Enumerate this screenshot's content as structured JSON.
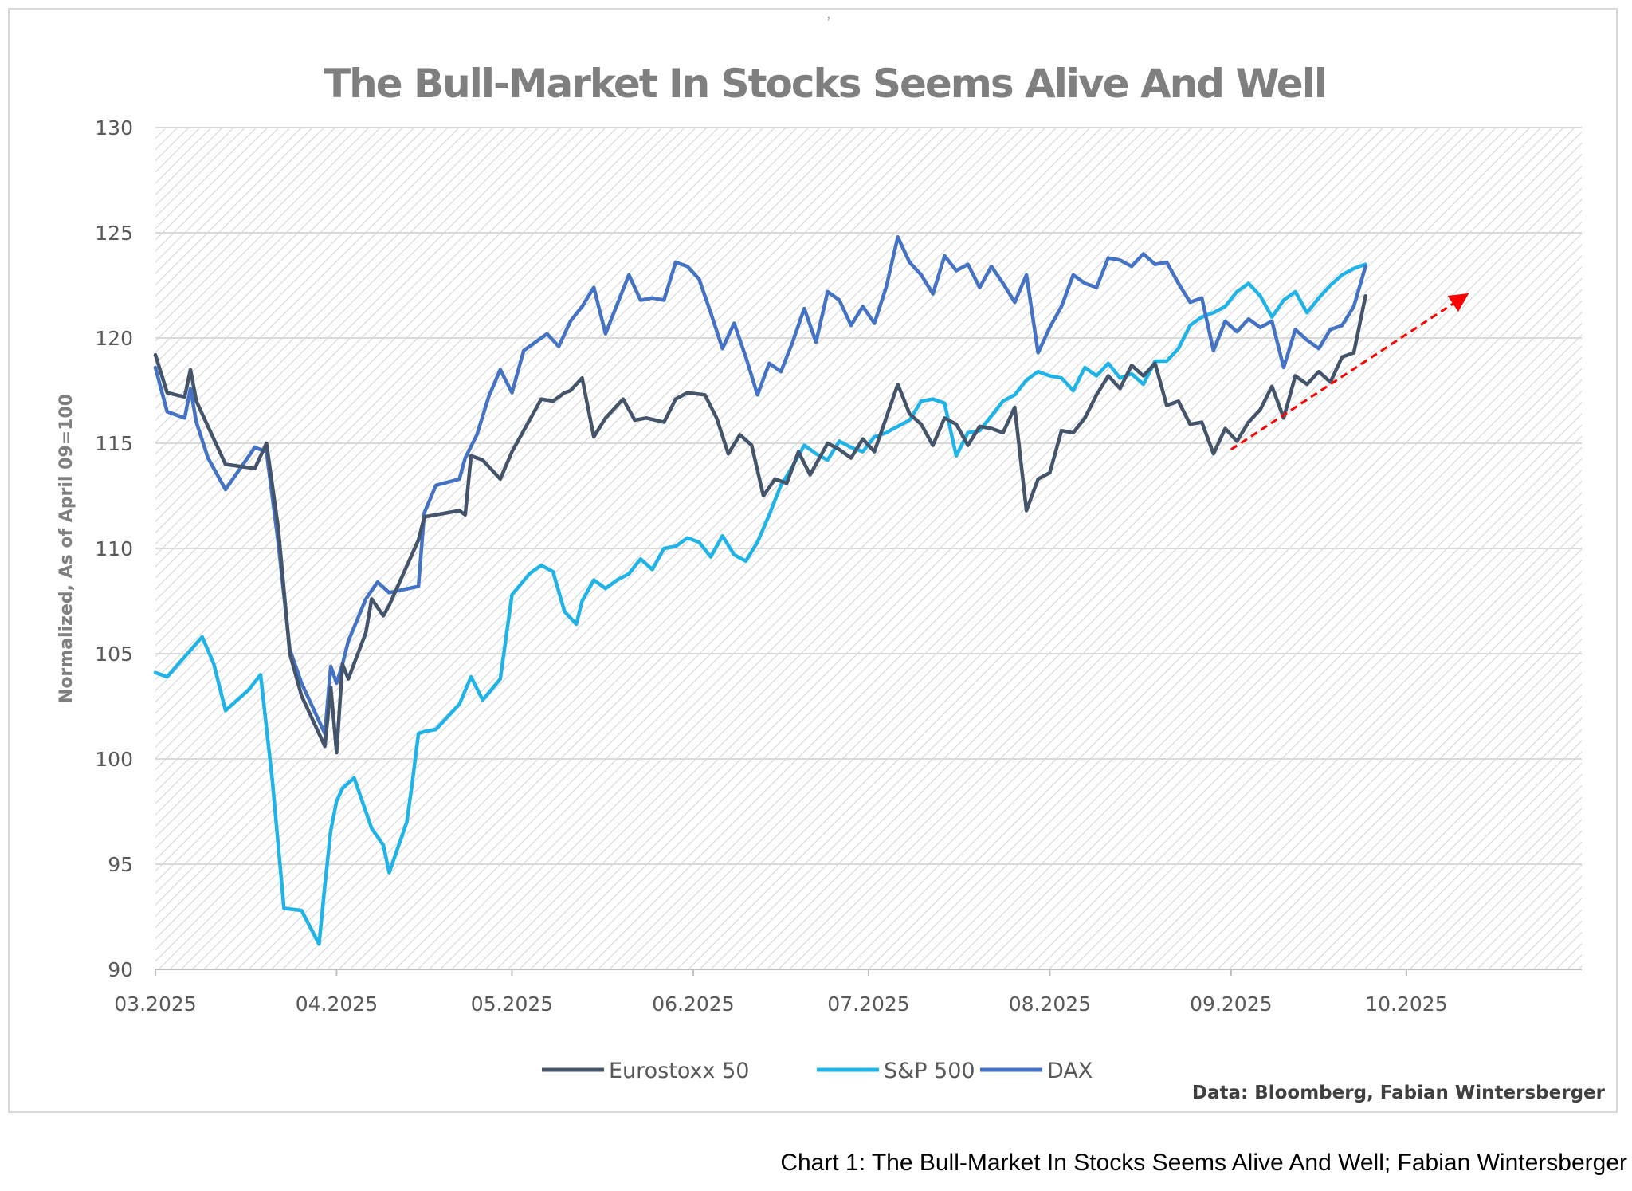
{
  "caption": "Chart 1: The Bull-Market In Stocks Seems Alive And Well; Fabian Wintersberger",
  "top_mark": ",",
  "colors": {
    "eurostoxx": "#44546a",
    "sp500": "#1fb3e8",
    "dax": "#4472c4",
    "arrow": "#ff0000",
    "grid": "#d9d9d9",
    "hatch": "#d6d6d6"
  },
  "chart_data": {
    "type": "line",
    "title": "The Bull-Market In Stocks Seems Alive And Well",
    "xlabel": "",
    "ylabel": "Normalized, As of April 09=100",
    "source": "Data: Bloomberg, Fabian Wintersberger",
    "ylim": [
      90,
      130
    ],
    "yticks": [
      90,
      95,
      100,
      105,
      110,
      115,
      120,
      125,
      130
    ],
    "xlim": [
      "2025-03-01",
      "2025-10-31"
    ],
    "xtick_labels": [
      "03.2025",
      "04.2025",
      "05.2025",
      "06.2025",
      "07.2025",
      "08.2025",
      "09.2025",
      "10.2025"
    ],
    "grid": true,
    "legend": "bottom",
    "annotation": "red dashed trend arrow pointing up-right, from about 114.7 in early September to about 122 in mid-October",
    "arrow": {
      "from": [
        "2025-09-01",
        114.7
      ],
      "to": [
        "2025-10-11",
        122.0
      ]
    },
    "series": [
      {
        "name": "Eurostoxx 50",
        "x": [
          "2025-03-01",
          "2025-03-03",
          "2025-03-06",
          "2025-03-07",
          "2025-03-08",
          "2025-03-10",
          "2025-03-13",
          "2025-03-18",
          "2025-03-20",
          "2025-03-22",
          "2025-03-24",
          "2025-03-26",
          "2025-03-30",
          "2025-03-31",
          "2025-04-01",
          "2025-04-02",
          "2025-04-03",
          "2025-04-06",
          "2025-04-07",
          "2025-04-09",
          "2025-04-10",
          "2025-04-15",
          "2025-04-16",
          "2025-04-22",
          "2025-04-23",
          "2025-04-24",
          "2025-04-26",
          "2025-04-29",
          "2025-05-01",
          "2025-05-03",
          "2025-05-06",
          "2025-05-08",
          "2025-05-10",
          "2025-05-11",
          "2025-05-13",
          "2025-05-15",
          "2025-05-17",
          "2025-05-20",
          "2025-05-22",
          "2025-05-24",
          "2025-05-27",
          "2025-05-29",
          "2025-05-31",
          "2025-06-03",
          "2025-06-05",
          "2025-06-07",
          "2025-06-09",
          "2025-06-11",
          "2025-06-13",
          "2025-06-15",
          "2025-06-17",
          "2025-06-19",
          "2025-06-21",
          "2025-06-24",
          "2025-06-26",
          "2025-06-28",
          "2025-06-30",
          "2025-07-02",
          "2025-07-04",
          "2025-07-06",
          "2025-07-08",
          "2025-07-10",
          "2025-07-12",
          "2025-07-14",
          "2025-07-16",
          "2025-07-18",
          "2025-07-20",
          "2025-07-22",
          "2025-07-24",
          "2025-07-26",
          "2025-07-28",
          "2025-07-30",
          "2025-08-01",
          "2025-08-03",
          "2025-08-05",
          "2025-08-07",
          "2025-08-09",
          "2025-08-11",
          "2025-08-13",
          "2025-08-15",
          "2025-08-17",
          "2025-08-19",
          "2025-08-21",
          "2025-08-23",
          "2025-08-25",
          "2025-08-27",
          "2025-08-29",
          "2025-08-31",
          "2025-09-02",
          "2025-09-04",
          "2025-09-06",
          "2025-09-08",
          "2025-09-10",
          "2025-09-12",
          "2025-09-14",
          "2025-09-16",
          "2025-09-18",
          "2025-09-20",
          "2025-09-22",
          "2025-09-24"
        ],
        "values": [
          119.2,
          117.4,
          117.2,
          118.5,
          117.0,
          115.8,
          114.0,
          113.8,
          115.0,
          111.0,
          105.0,
          103.0,
          100.6,
          103.4,
          100.3,
          104.5,
          103.8,
          106.0,
          107.6,
          106.8,
          107.3,
          110.4,
          111.5,
          111.8,
          111.6,
          114.4,
          114.2,
          113.3,
          114.6,
          115.6,
          117.1,
          117.0,
          117.4,
          117.5,
          118.1,
          115.3,
          116.2,
          117.1,
          116.1,
          116.2,
          116.0,
          117.1,
          117.4,
          117.3,
          116.2,
          114.5,
          115.4,
          114.9,
          112.5,
          113.3,
          113.1,
          114.6,
          113.5,
          115.0,
          114.7,
          114.3,
          115.2,
          114.6,
          116.2,
          117.8,
          116.4,
          115.9,
          114.9,
          116.2,
          115.9,
          114.9,
          115.8,
          115.7,
          115.5,
          116.7,
          111.8,
          113.3,
          113.6,
          115.6,
          115.5,
          116.2,
          117.3,
          118.2,
          117.6,
          118.7,
          118.2,
          118.8,
          116.8,
          117.0,
          115.9,
          116.0,
          114.5,
          115.7,
          115.1,
          116.0,
          116.6,
          117.7,
          116.2,
          118.2,
          117.8,
          118.4,
          117.9,
          119.1,
          119.3,
          122.0
        ]
      },
      {
        "name": "S&P 500",
        "x": [
          "2025-03-01",
          "2025-03-03",
          "2025-03-09",
          "2025-03-11",
          "2025-03-13",
          "2025-03-17",
          "2025-03-19",
          "2025-03-21",
          "2025-03-23",
          "2025-03-26",
          "2025-03-29",
          "2025-03-30",
          "2025-03-31",
          "2025-04-01",
          "2025-04-02",
          "2025-04-04",
          "2025-04-07",
          "2025-04-09",
          "2025-04-10",
          "2025-04-13",
          "2025-04-14",
          "2025-04-15",
          "2025-04-16",
          "2025-04-18",
          "2025-04-22",
          "2025-04-24",
          "2025-04-26",
          "2025-04-29",
          "2025-05-01",
          "2025-05-04",
          "2025-05-06",
          "2025-05-08",
          "2025-05-10",
          "2025-05-12",
          "2025-05-13",
          "2025-05-15",
          "2025-05-17",
          "2025-05-19",
          "2025-05-21",
          "2025-05-23",
          "2025-05-25",
          "2025-05-27",
          "2025-05-29",
          "2025-05-31",
          "2025-06-02",
          "2025-06-04",
          "2025-06-06",
          "2025-06-08",
          "2025-06-10",
          "2025-06-12",
          "2025-06-14",
          "2025-06-16",
          "2025-06-18",
          "2025-06-20",
          "2025-06-22",
          "2025-06-24",
          "2025-06-26",
          "2025-06-28",
          "2025-06-30",
          "2025-07-02",
          "2025-07-04",
          "2025-07-06",
          "2025-07-08",
          "2025-07-10",
          "2025-07-12",
          "2025-07-14",
          "2025-07-16",
          "2025-07-18",
          "2025-07-20",
          "2025-07-22",
          "2025-07-24",
          "2025-07-26",
          "2025-07-28",
          "2025-07-30",
          "2025-08-01",
          "2025-08-03",
          "2025-08-05",
          "2025-08-07",
          "2025-08-09",
          "2025-08-11",
          "2025-08-13",
          "2025-08-15",
          "2025-08-17",
          "2025-08-19",
          "2025-08-21",
          "2025-08-23",
          "2025-08-25",
          "2025-08-27",
          "2025-08-29",
          "2025-08-31",
          "2025-09-02",
          "2025-09-04",
          "2025-09-06",
          "2025-09-08",
          "2025-09-10",
          "2025-09-12",
          "2025-09-14",
          "2025-09-16",
          "2025-09-18",
          "2025-09-20",
          "2025-09-22",
          "2025-09-24"
        ],
        "values": [
          104.1,
          103.9,
          105.8,
          104.5,
          102.3,
          103.3,
          104.0,
          99.0,
          92.9,
          92.8,
          91.2,
          94.0,
          96.6,
          98.0,
          98.6,
          99.1,
          96.7,
          95.9,
          94.6,
          97.0,
          99.0,
          101.2,
          101.3,
          101.4,
          102.6,
          103.9,
          102.8,
          103.8,
          107.8,
          108.8,
          109.2,
          108.9,
          107.0,
          106.4,
          107.5,
          108.5,
          108.1,
          108.5,
          108.8,
          109.5,
          109.0,
          110.0,
          110.1,
          110.5,
          110.3,
          109.6,
          110.6,
          109.7,
          109.4,
          110.3,
          111.6,
          113.0,
          113.9,
          114.9,
          114.5,
          114.2,
          115.1,
          114.8,
          114.6,
          115.3,
          115.5,
          115.8,
          116.1,
          117.0,
          117.1,
          116.9,
          114.4,
          115.5,
          115.6,
          116.3,
          117.0,
          117.3,
          118.0,
          118.4,
          118.2,
          118.1,
          117.5,
          118.6,
          118.2,
          118.8,
          118.1,
          118.3,
          117.8,
          118.9,
          118.9,
          119.5,
          120.6,
          121.0,
          121.2,
          121.5,
          122.2,
          122.6,
          122.0,
          121.0,
          121.8,
          122.2,
          121.2,
          121.9,
          122.5,
          123.0,
          123.3,
          123.5
        ]
      },
      {
        "name": "DAX",
        "x": [
          "2025-03-01",
          "2025-03-03",
          "2025-03-06",
          "2025-03-07",
          "2025-03-08",
          "2025-03-10",
          "2025-03-13",
          "2025-03-18",
          "2025-03-20",
          "2025-03-22",
          "2025-03-24",
          "2025-03-26",
          "2025-03-30",
          "2025-03-31",
          "2025-04-01",
          "2025-04-02",
          "2025-04-03",
          "2025-04-06",
          "2025-04-08",
          "2025-04-10",
          "2025-04-15",
          "2025-04-16",
          "2025-04-18",
          "2025-04-22",
          "2025-04-23",
          "2025-04-25",
          "2025-04-27",
          "2025-04-29",
          "2025-05-01",
          "2025-05-03",
          "2025-05-05",
          "2025-05-07",
          "2025-05-09",
          "2025-05-11",
          "2025-05-13",
          "2025-05-15",
          "2025-05-17",
          "2025-05-19",
          "2025-05-21",
          "2025-05-23",
          "2025-05-25",
          "2025-05-27",
          "2025-05-29",
          "2025-05-31",
          "2025-06-02",
          "2025-06-04",
          "2025-06-06",
          "2025-06-08",
          "2025-06-10",
          "2025-06-12",
          "2025-06-14",
          "2025-06-16",
          "2025-06-18",
          "2025-06-20",
          "2025-06-22",
          "2025-06-24",
          "2025-06-26",
          "2025-06-28",
          "2025-06-30",
          "2025-07-02",
          "2025-07-04",
          "2025-07-06",
          "2025-07-08",
          "2025-07-10",
          "2025-07-12",
          "2025-07-14",
          "2025-07-16",
          "2025-07-18",
          "2025-07-20",
          "2025-07-22",
          "2025-07-24",
          "2025-07-26",
          "2025-07-28",
          "2025-07-30",
          "2025-08-01",
          "2025-08-03",
          "2025-08-05",
          "2025-08-07",
          "2025-08-09",
          "2025-08-11",
          "2025-08-13",
          "2025-08-15",
          "2025-08-17",
          "2025-08-19",
          "2025-08-21",
          "2025-08-23",
          "2025-08-25",
          "2025-08-27",
          "2025-08-29",
          "2025-08-31",
          "2025-09-02",
          "2025-09-04",
          "2025-09-06",
          "2025-09-08",
          "2025-09-10",
          "2025-09-12",
          "2025-09-14",
          "2025-09-16",
          "2025-09-18",
          "2025-09-20",
          "2025-09-22",
          "2025-09-24"
        ],
        "values": [
          118.6,
          116.5,
          116.2,
          117.6,
          116.0,
          114.3,
          112.8,
          114.8,
          114.6,
          110.3,
          105.2,
          103.6,
          101.2,
          104.4,
          103.6,
          104.5,
          105.6,
          107.6,
          108.4,
          107.9,
          108.2,
          111.7,
          113.0,
          113.3,
          114.3,
          115.4,
          117.2,
          118.5,
          117.4,
          119.4,
          119.8,
          120.2,
          119.6,
          120.8,
          121.5,
          122.4,
          120.2,
          121.6,
          123.0,
          121.8,
          121.9,
          121.8,
          123.6,
          123.4,
          122.8,
          121.2,
          119.5,
          120.7,
          119.1,
          117.3,
          118.8,
          118.4,
          119.8,
          121.4,
          119.8,
          122.2,
          121.8,
          120.6,
          121.5,
          120.7,
          122.4,
          124.8,
          123.6,
          123.0,
          122.1,
          123.9,
          123.2,
          123.5,
          122.4,
          123.4,
          122.6,
          121.7,
          123.0,
          119.3,
          120.5,
          121.5,
          123.0,
          122.6,
          122.4,
          123.8,
          123.7,
          123.4,
          124.0,
          123.5,
          123.6,
          122.6,
          121.7,
          121.9,
          119.4,
          120.8,
          120.3,
          120.9,
          120.5,
          120.8,
          118.6,
          120.4,
          119.9,
          119.5,
          120.4,
          120.6,
          121.5,
          123.4
        ]
      }
    ]
  }
}
